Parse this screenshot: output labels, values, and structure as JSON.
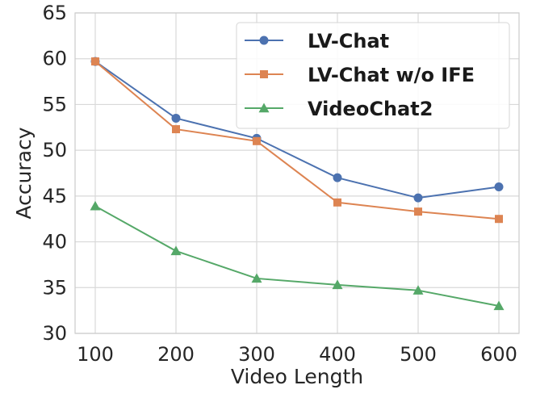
{
  "chart_data": {
    "type": "line",
    "xlabel": "Video Length",
    "ylabel": "Accuracy",
    "x": [
      100,
      200,
      300,
      400,
      500,
      600
    ],
    "xticks": [
      100,
      200,
      300,
      400,
      500,
      600
    ],
    "yticks": [
      30,
      35,
      40,
      45,
      50,
      55,
      60,
      65
    ],
    "xlim": [
      75,
      625
    ],
    "ylim": [
      30,
      65
    ],
    "grid": true,
    "legend_position": "top-right",
    "series": [
      {
        "name": "LV-Chat",
        "color": "#4c72b0",
        "marker": "circle",
        "values": [
          59.7,
          53.5,
          51.3,
          47.0,
          44.8,
          46.0
        ]
      },
      {
        "name": "LV-Chat w/o IFE",
        "color": "#dd8452",
        "marker": "square",
        "values": [
          59.7,
          52.3,
          51.0,
          44.3,
          43.3,
          42.5
        ]
      },
      {
        "name": "VideoChat2",
        "color": "#55a868",
        "marker": "triangle",
        "values": [
          43.9,
          39.0,
          36.0,
          35.3,
          34.7,
          33.0
        ]
      }
    ]
  }
}
